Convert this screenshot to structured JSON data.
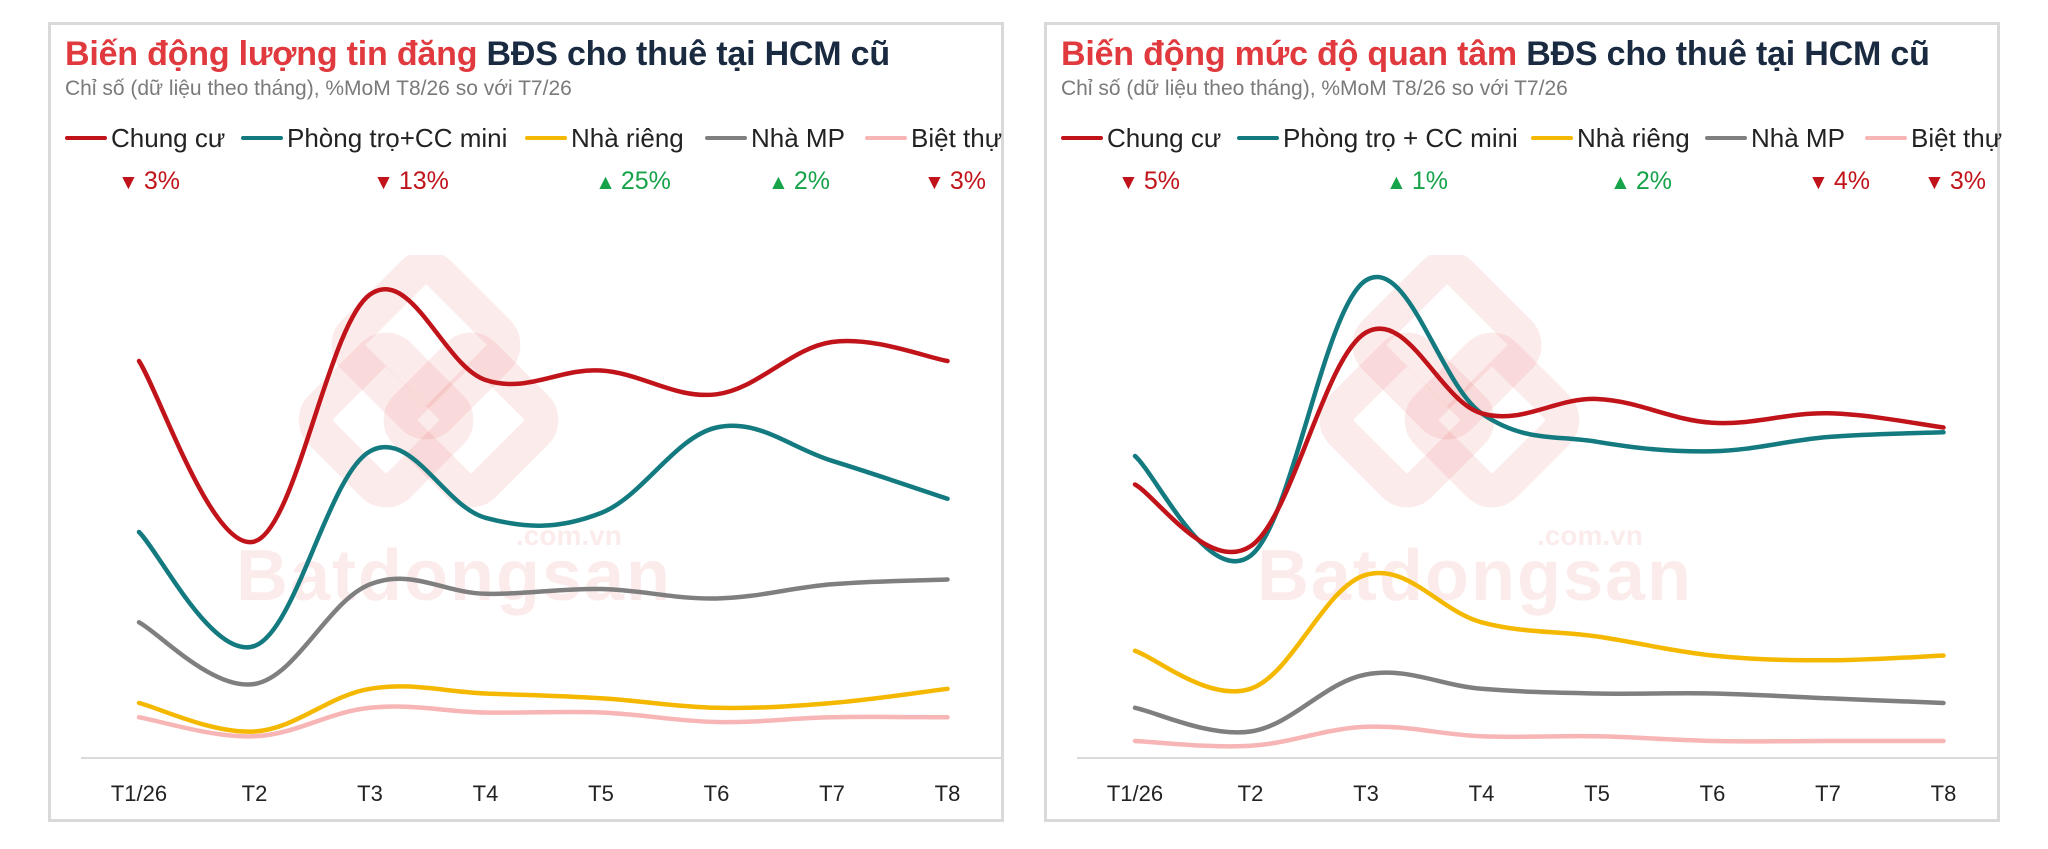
{
  "chart_data": [
    {
      "type": "line",
      "title": "Biến động lượng tin đăng BĐS cho thuê tại HCM cũ",
      "title_highlight": "Biến động lượng tin đăng",
      "title_rest": "BĐS cho thuê tại HCM cũ",
      "subtitle": "Chỉ số (dữ liệu theo tháng), %MoM T8/26 so với T7/26",
      "legend_position": "top",
      "grid": false,
      "ylim": [
        0,
        100
      ],
      "categories": [
        "T1/26",
        "T2",
        "T3",
        "T4",
        "T5",
        "T6",
        "T7",
        "T8"
      ],
      "series": [
        {
          "name": "Chung cư",
          "color": "#c0141a",
          "values": [
            84,
            46,
            98,
            80,
            82,
            77,
            88,
            84
          ],
          "mom": "3%",
          "direction": "down"
        },
        {
          "name": "Phòng trọ+CC mini",
          "color": "#137a80",
          "values": [
            48,
            24,
            65,
            51,
            52,
            70,
            63,
            55
          ],
          "mom": "13%",
          "direction": "down"
        },
        {
          "name": "Nhà riêng",
          "color": "#f5b800",
          "values": [
            12,
            6,
            15,
            14,
            13,
            11,
            12,
            15
          ],
          "mom": "25%",
          "direction": "up"
        },
        {
          "name": "Nhà MP",
          "color": "#7f7f7f",
          "values": [
            29,
            16,
            37,
            35,
            36,
            34,
            37,
            38
          ],
          "mom": "2%",
          "direction": "up"
        },
        {
          "name": "Biệt thự",
          "color": "#f7b5b5",
          "values": [
            9,
            5,
            11,
            10,
            10,
            8,
            9,
            9
          ],
          "mom": "3%",
          "direction": "down"
        }
      ]
    },
    {
      "type": "line",
      "title": "Biến động mức độ quan tâm BĐS cho thuê tại HCM cũ",
      "title_highlight": "Biến động mức độ quan tâm",
      "title_rest": "BĐS cho thuê tại HCM cũ",
      "subtitle": "Chỉ số (dữ liệu theo tháng), %MoM T8/26 so với T7/26",
      "legend_position": "top",
      "grid": false,
      "ylim": [
        0,
        100
      ],
      "categories": [
        "T1/26",
        "T2",
        "T3",
        "T4",
        "T5",
        "T6",
        "T7",
        "T8"
      ],
      "series": [
        {
          "name": "Chung cư",
          "color": "#c0141a",
          "values": [
            58,
            45,
            90,
            73,
            76,
            71,
            73,
            70
          ],
          "mom": "5%",
          "direction": "down"
        },
        {
          "name": "Phòng trọ + CC mini",
          "color": "#137a80",
          "values": [
            64,
            43,
            101,
            73,
            67,
            65,
            68,
            69
          ],
          "mom": "1%",
          "direction": "up"
        },
        {
          "name": "Nhà riêng",
          "color": "#f5b800",
          "values": [
            23,
            15,
            39,
            29,
            26,
            22,
            21,
            22
          ],
          "mom": "2%",
          "direction": "up"
        },
        {
          "name": "Nhà MP",
          "color": "#7f7f7f",
          "values": [
            11,
            6,
            18,
            15,
            14,
            14,
            13,
            12
          ],
          "mom": "4%",
          "direction": "down"
        },
        {
          "name": "Biệt thự",
          "color": "#f7b5b5",
          "values": [
            4,
            3,
            7,
            5,
            5,
            4,
            4,
            4
          ],
          "mom": "3%",
          "direction": "down"
        }
      ]
    }
  ],
  "watermark": {
    "brand": "Batdongsan",
    "domain": ".com.vn"
  }
}
